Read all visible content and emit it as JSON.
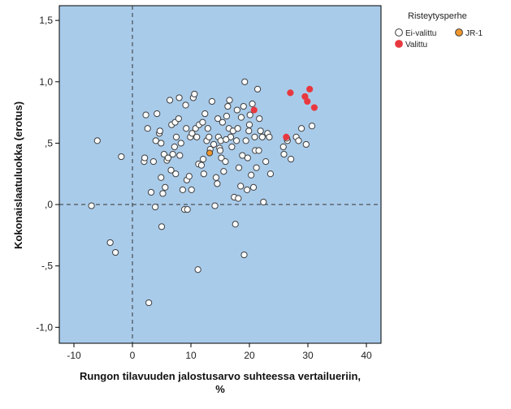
{
  "chart_data": {
    "type": "scatter",
    "xlabel_line1": "Rungon tilavuuden jalostusarvo suhteessa vertailueriin,",
    "xlabel_line2": "%",
    "ylabel": "Kokonaislaatuluokka (erotus)",
    "xlim": [
      -12.5,
      42.5
    ],
    "ylim": [
      -1.13,
      1.62
    ],
    "x_ticks": [
      -10,
      0,
      10,
      20,
      30,
      40
    ],
    "x_tick_labels": [
      "-10",
      "0",
      "10",
      "20",
      "30",
      "40"
    ],
    "y_ticks": [
      -1.0,
      -0.5,
      0.0,
      0.5,
      1.0,
      1.5
    ],
    "y_tick_labels": [
      "-1,0",
      "-,5",
      ",0",
      ",5",
      "1,0",
      "1,5"
    ],
    "reference_lines": {
      "x": 0,
      "y": 0,
      "style": "dashed"
    },
    "grid": false,
    "plot_background": "#a9cbea",
    "legend": {
      "title": "Risteytysperhe",
      "placement": "right",
      "entries": [
        {
          "label": "Ei-valittu",
          "color": "#ffffff"
        },
        {
          "label": "JR-1",
          "color": "#f0962d"
        },
        {
          "label": "Valittu",
          "color": "#e8383f"
        }
      ]
    },
    "series": [
      {
        "name": "Ei-valittu",
        "color": "#ffffff",
        "points": [
          [
            -7.0,
            -0.01
          ],
          [
            -6.0,
            0.52
          ],
          [
            -3.8,
            -0.31
          ],
          [
            -2.9,
            -0.39
          ],
          [
            -1.9,
            0.39
          ],
          [
            2.0,
            0.35
          ],
          [
            2.1,
            0.38
          ],
          [
            2.3,
            0.73
          ],
          [
            2.6,
            0.62
          ],
          [
            2.8,
            -0.8
          ],
          [
            3.2,
            0.1
          ],
          [
            3.6,
            0.35
          ],
          [
            3.9,
            -0.02
          ],
          [
            4.0,
            0.52
          ],
          [
            4.2,
            0.74
          ],
          [
            4.6,
            0.58
          ],
          [
            4.7,
            0.6
          ],
          [
            4.9,
            0.5
          ],
          [
            4.9,
            0.22
          ],
          [
            5.0,
            -0.18
          ],
          [
            5.2,
            0.09
          ],
          [
            5.4,
            0.41
          ],
          [
            5.6,
            0.14
          ],
          [
            5.9,
            0.36
          ],
          [
            6.1,
            0.38
          ],
          [
            6.4,
            0.85
          ],
          [
            6.6,
            0.28
          ],
          [
            6.7,
            0.65
          ],
          [
            6.9,
            0.41
          ],
          [
            7.2,
            0.47
          ],
          [
            7.3,
            0.67
          ],
          [
            7.4,
            0.25
          ],
          [
            7.5,
            0.55
          ],
          [
            7.9,
            0.7
          ],
          [
            8.0,
            0.87
          ],
          [
            8.1,
            0.4
          ],
          [
            8.3,
            0.5
          ],
          [
            8.6,
            0.12
          ],
          [
            8.9,
            -0.04
          ],
          [
            9.1,
            0.81
          ],
          [
            9.2,
            0.62
          ],
          [
            9.3,
            0.2
          ],
          [
            9.4,
            -0.04
          ],
          [
            9.7,
            0.23
          ],
          [
            9.9,
            0.55
          ],
          [
            10.1,
            0.12
          ],
          [
            10.2,
            0.58
          ],
          [
            10.4,
            0.87
          ],
          [
            10.6,
            0.9
          ],
          [
            10.8,
            0.62
          ],
          [
            11.0,
            0.55
          ],
          [
            11.2,
            -0.53
          ],
          [
            11.3,
            0.33
          ],
          [
            11.4,
            0.65
          ],
          [
            11.8,
            0.32
          ],
          [
            12.0,
            0.67
          ],
          [
            12.1,
            0.37
          ],
          [
            12.2,
            0.25
          ],
          [
            12.4,
            0.74
          ],
          [
            12.7,
            0.52
          ],
          [
            12.9,
            0.62
          ],
          [
            13.1,
            0.55
          ],
          [
            13.3,
            0.45
          ],
          [
            13.6,
            0.84
          ],
          [
            13.9,
            0.49
          ],
          [
            14.1,
            -0.01
          ],
          [
            14.3,
            0.22
          ],
          [
            14.5,
            0.17
          ],
          [
            14.6,
            0.7
          ],
          [
            14.7,
            0.55
          ],
          [
            14.9,
            0.46
          ],
          [
            15.0,
            0.44
          ],
          [
            15.1,
            0.52
          ],
          [
            15.2,
            0.38
          ],
          [
            15.4,
            0.67
          ],
          [
            15.6,
            0.27
          ],
          [
            15.9,
            0.35
          ],
          [
            16.1,
            0.72
          ],
          [
            16.3,
            0.8
          ],
          [
            16.5,
            0.62
          ],
          [
            16.6,
            0.85
          ],
          [
            16.8,
            0.55
          ],
          [
            17.0,
            0.47
          ],
          [
            17.2,
            0.6
          ],
          [
            17.4,
            0.06
          ],
          [
            17.6,
            -0.16
          ],
          [
            17.8,
            0.52
          ],
          [
            17.9,
            0.77
          ],
          [
            18.0,
            0.62
          ],
          [
            18.1,
            0.05
          ],
          [
            18.2,
            0.3
          ],
          [
            18.5,
            0.15
          ],
          [
            18.6,
            0.71
          ],
          [
            18.8,
            0.4
          ],
          [
            19.0,
            0.8
          ],
          [
            19.1,
            -0.41
          ],
          [
            19.2,
            1.0
          ],
          [
            19.4,
            0.52
          ],
          [
            19.6,
            0.12
          ],
          [
            19.7,
            0.38
          ],
          [
            19.9,
            0.6
          ],
          [
            20.0,
            0.65
          ],
          [
            20.1,
            0.73
          ],
          [
            20.3,
            0.24
          ],
          [
            20.5,
            0.82
          ],
          [
            20.7,
            0.14
          ],
          [
            20.9,
            0.55
          ],
          [
            21.0,
            0.44
          ],
          [
            21.2,
            0.3
          ],
          [
            21.4,
            0.94
          ],
          [
            21.6,
            0.44
          ],
          [
            21.7,
            0.7
          ],
          [
            21.9,
            0.6
          ],
          [
            22.2,
            0.55
          ],
          [
            22.4,
            0.02
          ],
          [
            22.8,
            0.35
          ],
          [
            23.1,
            0.58
          ],
          [
            23.4,
            0.55
          ],
          [
            23.6,
            0.25
          ],
          [
            25.8,
            0.47
          ],
          [
            25.9,
            0.41
          ],
          [
            26.5,
            0.52
          ],
          [
            27.1,
            0.37
          ],
          [
            28.0,
            0.55
          ],
          [
            28.4,
            0.52
          ],
          [
            28.9,
            0.62
          ],
          [
            29.7,
            0.49
          ],
          [
            30.7,
            0.64
          ],
          [
            26.4,
            0.54
          ],
          [
            16.0,
            0.53
          ]
        ]
      },
      {
        "name": "JR-1",
        "color": "#f0962d",
        "points": [
          [
            13.2,
            0.42
          ]
        ]
      },
      {
        "name": "Valittu",
        "color": "#e8383f",
        "points": [
          [
            20.8,
            0.77
          ],
          [
            26.3,
            0.55
          ],
          [
            27.0,
            0.91
          ],
          [
            29.5,
            0.88
          ],
          [
            29.9,
            0.84
          ],
          [
            30.3,
            0.94
          ],
          [
            31.1,
            0.79
          ]
        ]
      }
    ]
  }
}
